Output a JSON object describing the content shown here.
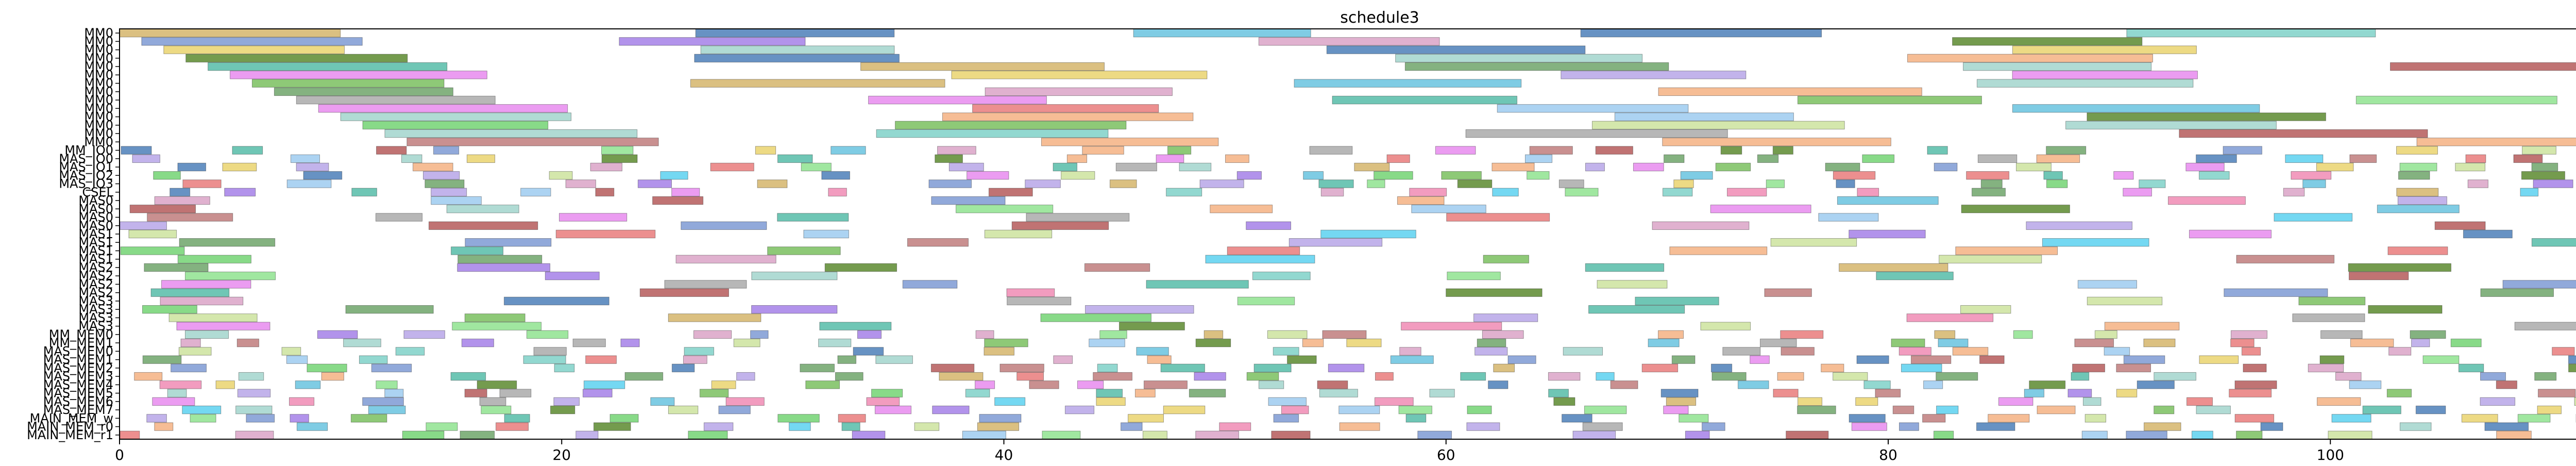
{
  "chart_data": {
    "type": "gantt",
    "title": "schedule3",
    "xlabel": "",
    "ylabel": "",
    "xlim": [
      0,
      114
    ],
    "x_ticks": [
      0,
      20,
      40,
      60,
      80,
      100
    ],
    "y_ticks": [
      "MM0",
      "MM0",
      "MM0",
      "MM0",
      "MM0",
      "MM0",
      "MM0",
      "MM0",
      "MM0",
      "MM0",
      "MM0",
      "MM0",
      "MM0",
      "MM0",
      "MM_IO0",
      "MAS_IO0",
      "MAS_IO1",
      "MAS_IO2",
      "MAS_IO3",
      "CSEL",
      "MAS0",
      "MAS0",
      "MAS0",
      "MAS0",
      "MAS1",
      "MAS1",
      "MAS1",
      "MAS1",
      "MAS2",
      "MAS2",
      "MAS2",
      "MAS2",
      "MAS3",
      "MAS3",
      "MAS3",
      "MAS3",
      "MM_MEM0",
      "MM_MEM1",
      "MAS_MEM0",
      "MAS_MEM1",
      "MAS_MEM2",
      "MAS_MEM3",
      "MAS_MEM4",
      "MAS_MEM5",
      "MAS_MEM6",
      "MAS_MEM7",
      "MAIN_MEM_w",
      "MAIN_MEM_r0",
      "MAIN_MEM_r1"
    ],
    "grid": false,
    "legend": "none"
  }
}
